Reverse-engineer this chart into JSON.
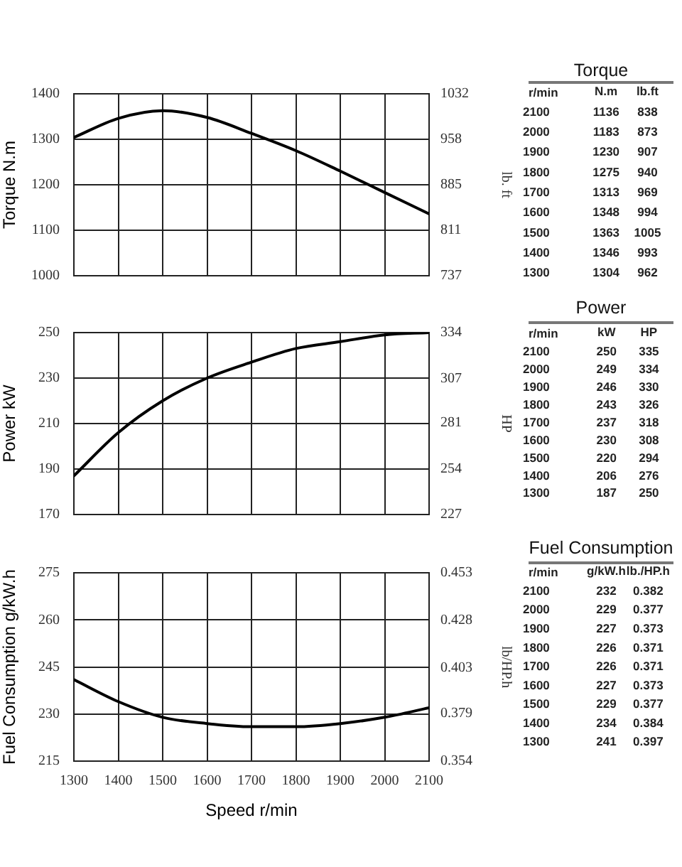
{
  "chart_data": [
    {
      "type": "line",
      "ylabel": "Torque N.m",
      "y2label": "lb. ft",
      "x": [
        1300,
        1400,
        1500,
        1600,
        1700,
        1800,
        1900,
        2000,
        2100
      ],
      "series": [
        {
          "color": "#000000",
          "values": [
            1304,
            1346,
            1363,
            1348,
            1313,
            1275,
            1230,
            1183,
            1136
          ]
        }
      ],
      "xlim": [
        1300,
        2100
      ],
      "xticks": [
        1300,
        1400,
        1500,
        1600,
        1700,
        1800,
        1900,
        2000,
        2100
      ],
      "ylim": [
        1000,
        1400
      ],
      "yticks": [
        1000,
        1100,
        1200,
        1300,
        1400
      ],
      "y2lim": [
        737,
        1032
      ],
      "y2ticks": [
        737,
        811,
        885,
        958,
        1032
      ],
      "grid": true,
      "legend": false,
      "tick_labels": "y"
    },
    {
      "type": "heatmap",
      "title": "Torque",
      "ylabel": "r/min",
      "categories": [
        "N.m",
        "lb.ft"
      ],
      "y_categories": [
        "2100",
        "2000",
        "1900",
        "1800",
        "1700",
        "1600",
        "1500",
        "1400",
        "1300"
      ],
      "cells": [
        [
          1136,
          838
        ],
        [
          1183,
          873
        ],
        [
          1230,
          907
        ],
        [
          1275,
          940
        ],
        [
          1313,
          969
        ],
        [
          1348,
          994
        ],
        [
          1363,
          1005
        ],
        [
          1346,
          993
        ],
        [
          1304,
          962
        ]
      ],
      "data_labels": true
    },
    {
      "type": "line",
      "ylabel": "Power kW",
      "y2label": "HP",
      "x": [
        1300,
        1400,
        1500,
        1600,
        1700,
        1800,
        1900,
        2000,
        2100
      ],
      "series": [
        {
          "color": "#000000",
          "values": [
            187,
            206,
            220,
            230,
            237,
            243,
            246,
            249,
            250
          ]
        }
      ],
      "xlim": [
        1300,
        2100
      ],
      "xticks": [
        1300,
        1400,
        1500,
        1600,
        1700,
        1800,
        1900,
        2000,
        2100
      ],
      "ylim": [
        170,
        250
      ],
      "yticks": [
        170,
        190,
        210,
        230,
        250
      ],
      "y2lim": [
        227,
        334
      ],
      "y2ticks": [
        227,
        254,
        281,
        307,
        334
      ],
      "grid": true,
      "legend": false,
      "tick_labels": "y"
    },
    {
      "type": "heatmap",
      "title": "Power",
      "ylabel": "r/min",
      "categories": [
        "kW",
        "HP"
      ],
      "y_categories": [
        "2100",
        "2000",
        "1900",
        "1800",
        "1700",
        "1600",
        "1500",
        "1400",
        "1300"
      ],
      "cells": [
        [
          250,
          335
        ],
        [
          249,
          334
        ],
        [
          246,
          330
        ],
        [
          243,
          326
        ],
        [
          237,
          318
        ],
        [
          230,
          308
        ],
        [
          220,
          294
        ],
        [
          206,
          276
        ],
        [
          187,
          250
        ]
      ],
      "data_labels": true
    },
    {
      "type": "line",
      "xlabel": "Speed r/min",
      "ylabel": "Fuel Consumption g/kW.h",
      "y2label": "lb/HP.h",
      "x": [
        1300,
        1400,
        1500,
        1600,
        1700,
        1800,
        1900,
        2000,
        2100
      ],
      "series": [
        {
          "color": "#000000",
          "values": [
            241,
            234,
            229,
            227,
            226,
            226,
            227,
            229,
            232
          ]
        }
      ],
      "xlim": [
        1300,
        2100
      ],
      "xticks": [
        1300,
        1400,
        1500,
        1600,
        1700,
        1800,
        1900,
        2000,
        2100
      ],
      "ylim": [
        215,
        275
      ],
      "yticks": [
        215,
        230,
        245,
        260,
        275
      ],
      "y2lim": [
        0.354,
        0.453
      ],
      "y2ticks": [
        0.354,
        0.379,
        0.403,
        0.428,
        0.453
      ],
      "grid": true,
      "legend": false
    },
    {
      "type": "heatmap",
      "title": "Fuel Consumption",
      "ylabel": "r/min",
      "categories": [
        "g/kW.h",
        "lb./HP.h"
      ],
      "y_categories": [
        "2100",
        "2000",
        "1900",
        "1800",
        "1700",
        "1600",
        "1500",
        "1400",
        "1300"
      ],
      "cells": [
        [
          232,
          0.382
        ],
        [
          229,
          0.377
        ],
        [
          227,
          0.373
        ],
        [
          226,
          0.371
        ],
        [
          226,
          0.371
        ],
        [
          227,
          0.373
        ],
        [
          229,
          0.377
        ],
        [
          234,
          0.384
        ],
        [
          241,
          0.397
        ]
      ],
      "data_labels": true
    }
  ]
}
